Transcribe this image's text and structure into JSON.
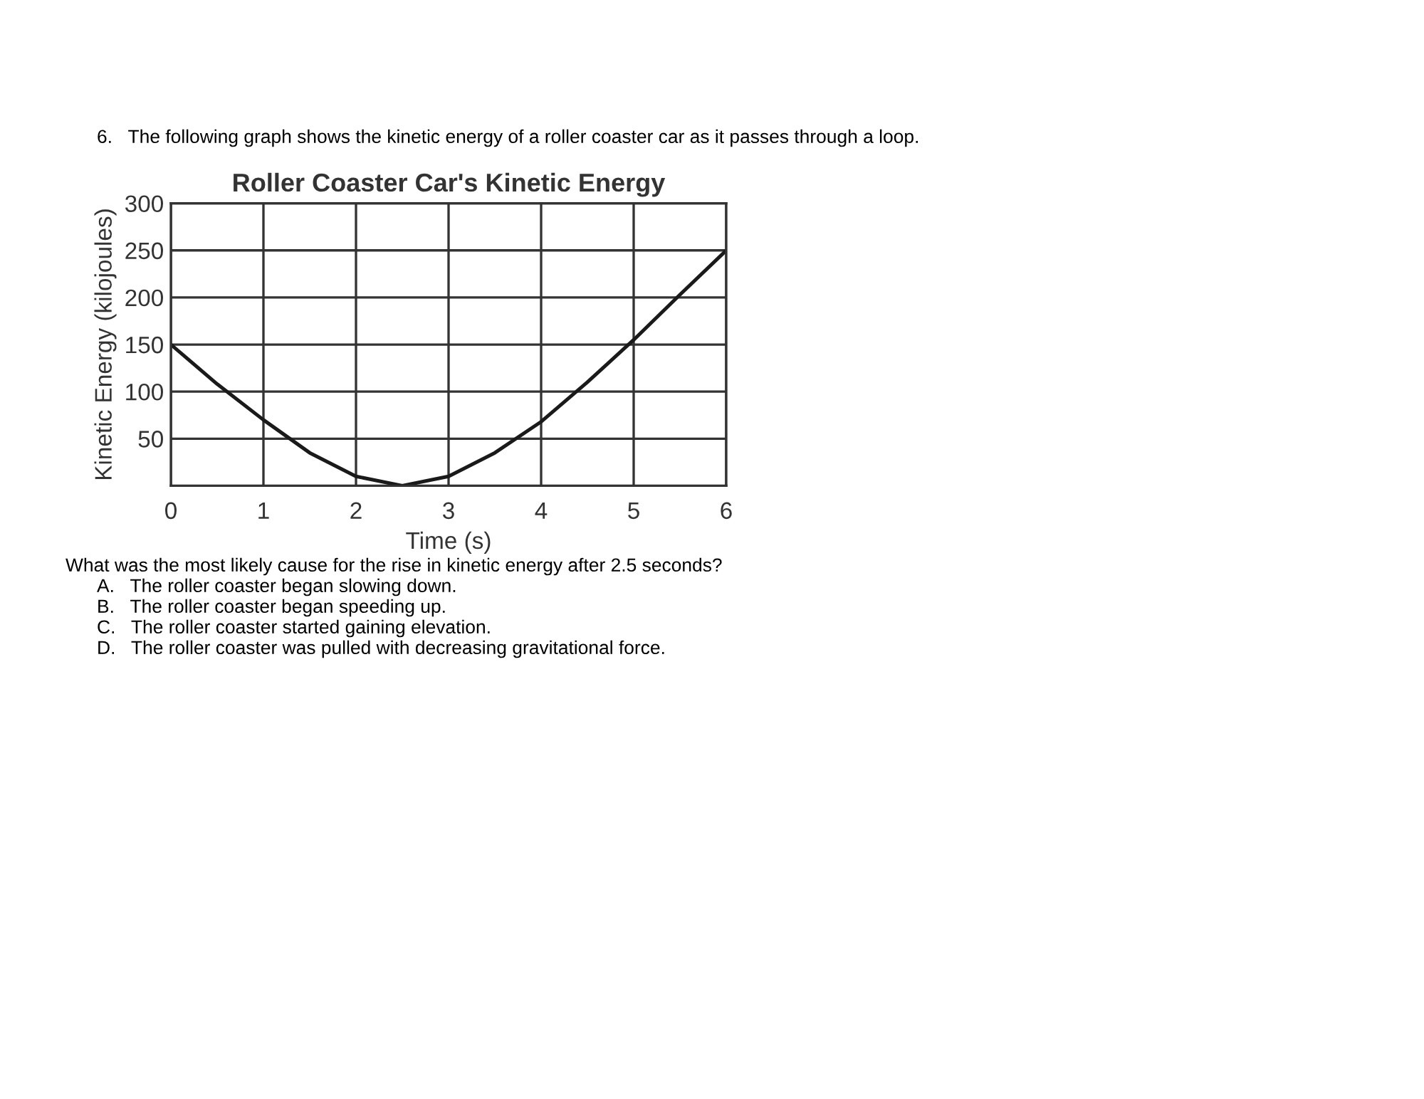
{
  "chart_data": {
    "type": "line",
    "title": "Roller Coaster Car's Kinetic Energy",
    "xlabel": "Time (s)",
    "ylabel": "Kinetic Energy (kilojoules)",
    "x": [
      0,
      0.5,
      1,
      1.5,
      2,
      2.5,
      3,
      3.5,
      4,
      4.5,
      5,
      5.5,
      6
    ],
    "series": [
      {
        "color": "#1a1a1a",
        "values": [
          150,
          108,
          70,
          35,
          10,
          0,
          10,
          35,
          68,
          110,
          155,
          203,
          250
        ]
      }
    ],
    "xlim": [
      0,
      6
    ],
    "xticks": [
      0,
      1,
      2,
      3,
      4,
      5,
      6
    ],
    "ylim": [
      0,
      300
    ],
    "yticks": [
      50,
      100,
      150,
      200,
      250,
      300
    ],
    "grid": true,
    "marker": "none",
    "line_style": "solid",
    "annotations": [
      "6.   The following graph shows the kinetic energy of a roller coaster car as it passes through a loop.",
      "What was the most likely cause for the rise in kinetic energy after 2.5 seconds?",
      "A.   The roller coaster began slowing down.",
      "B.   The roller coaster began speeding up.",
      "C.   The roller coaster started gaining elevation.",
      "D.   The roller coaster was pulled with decreasing gravitational force."
    ]
  }
}
